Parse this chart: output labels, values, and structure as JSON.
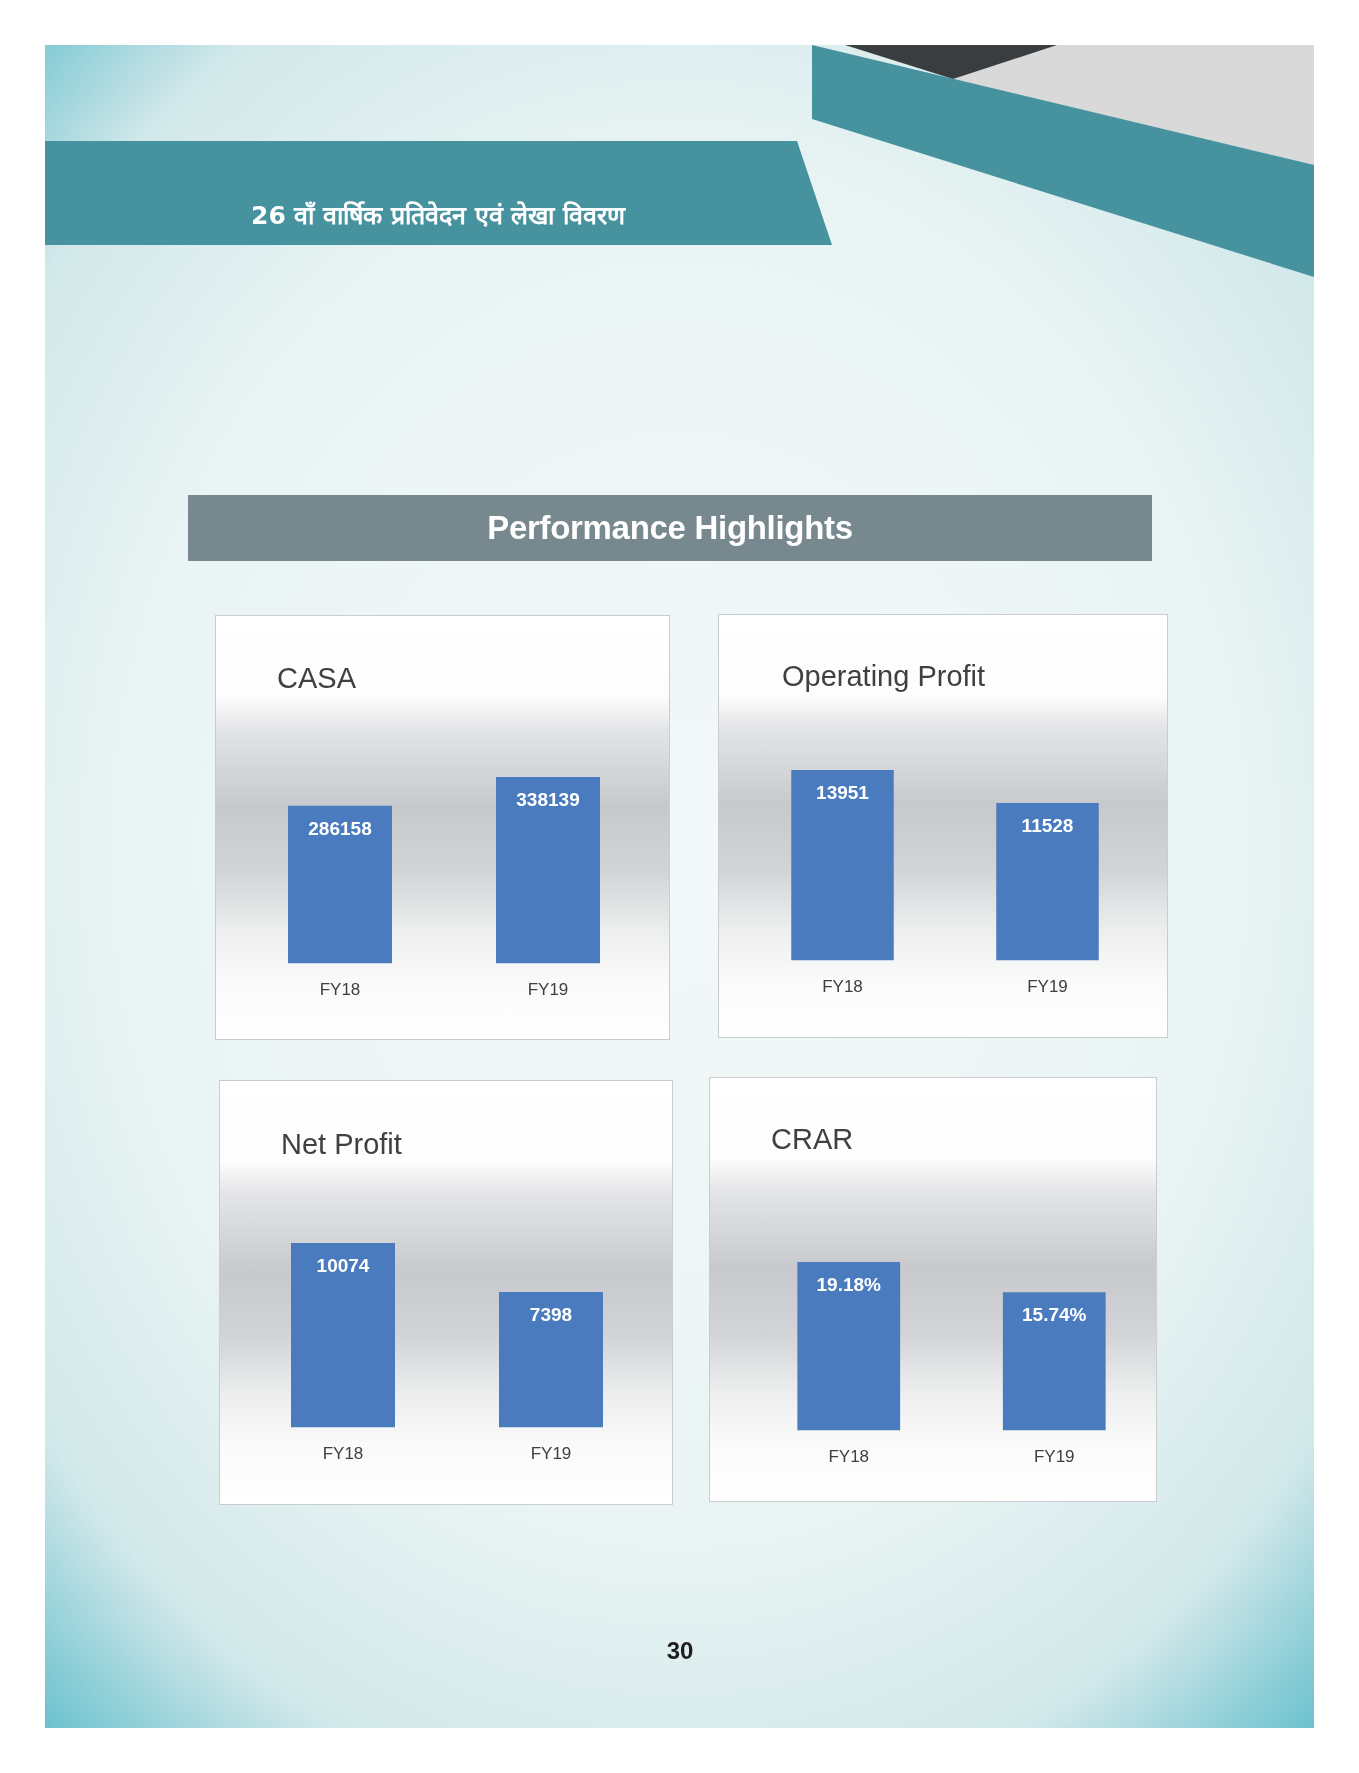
{
  "chart_data": [
    {
      "type": "other",
      "annotations": [
        "26 वाँ वार्षिक प्रतिवेदन एवं लेखा विवरण"
      ]
    },
    {
      "type": "other",
      "title": "Performance Highlights"
    },
    {
      "type": "bar",
      "title": "CASA",
      "categories": [
        "FY18",
        "FY19"
      ],
      "values": [
        286158,
        338139
      ],
      "color": "#4a7bbf",
      "data_labels": true,
      "tick_labels": "x"
    },
    {
      "type": "bar",
      "title": "Operating Profit",
      "categories": [
        "FY18",
        "FY19"
      ],
      "values": [
        13951,
        11528
      ],
      "color": "#4a7bbf",
      "data_labels": true,
      "tick_labels": "x"
    },
    {
      "type": "bar",
      "title": "Net Profit",
      "categories": [
        "FY18",
        "FY19"
      ],
      "values": [
        10074,
        7398
      ],
      "color": "#4a7bbf",
      "data_labels": true,
      "tick_labels": "x"
    },
    {
      "type": "bar",
      "title": "CRAR",
      "categories": [
        "FY18",
        "FY19"
      ],
      "values": [
        19.18,
        15.74
      ],
      "color": "#4a7bbf",
      "value_labels": [
        "19.18%",
        "15.74%"
      ],
      "tick_labels": "x"
    },
    {
      "type": "other",
      "annotations": [
        "30"
      ]
    }
  ]
}
